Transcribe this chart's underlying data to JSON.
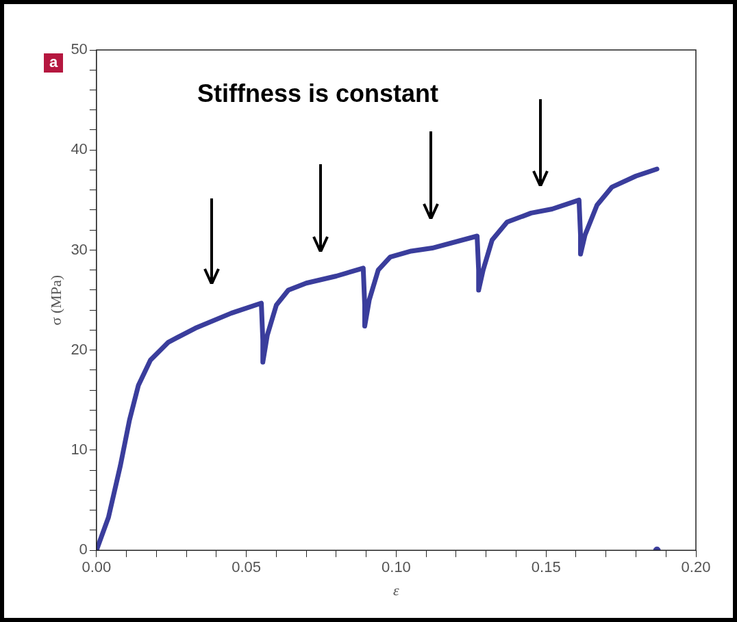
{
  "chart_data": {
    "type": "line",
    "xlabel": "ε",
    "ylabel": "σ (MPa)",
    "annotations": [
      "a",
      "Stiffness is constant"
    ],
    "xlim": [
      0,
      0.2
    ],
    "ylim": [
      0,
      50
    ],
    "xticks": [
      {
        "value": 0,
        "label": "0.00"
      },
      {
        "value": 0.01,
        "label": null
      },
      {
        "value": 0.02,
        "label": null
      },
      {
        "value": 0.03,
        "label": null
      },
      {
        "value": 0.04,
        "label": null
      },
      {
        "value": 0.05,
        "label": "0.05"
      },
      {
        "value": 0.06,
        "label": null
      },
      {
        "value": 0.07,
        "label": null
      },
      {
        "value": 0.08,
        "label": null
      },
      {
        "value": 0.09,
        "label": null
      },
      {
        "value": 0.1,
        "label": "0.10"
      },
      {
        "value": 0.11,
        "label": null
      },
      {
        "value": 0.12,
        "label": null
      },
      {
        "value": 0.13,
        "label": null
      },
      {
        "value": 0.14,
        "label": null
      },
      {
        "value": 0.15,
        "label": "0.15"
      },
      {
        "value": 0.16,
        "label": null
      },
      {
        "value": 0.17,
        "label": null
      },
      {
        "value": 0.18,
        "label": null
      },
      {
        "value": 0.19,
        "label": null
      },
      {
        "value": 0.2,
        "label": "0.20"
      }
    ],
    "yticks": [
      0,
      {
        "value": 2,
        "label": null
      },
      {
        "value": 4,
        "label": null
      },
      {
        "value": 6,
        "label": null
      },
      {
        "value": 8,
        "label": null
      },
      10,
      {
        "value": 12,
        "label": null
      },
      {
        "value": 14,
        "label": null
      },
      {
        "value": 16,
        "label": null
      },
      {
        "value": 18,
        "label": null
      },
      20,
      {
        "value": 22,
        "label": null
      },
      {
        "value": 24,
        "label": null
      },
      {
        "value": 26,
        "label": null
      },
      {
        "value": 28,
        "label": null
      },
      30,
      {
        "value": 32,
        "label": null
      },
      {
        "value": 34,
        "label": null
      },
      {
        "value": 36,
        "label": null
      },
      {
        "value": 38,
        "label": null
      },
      40,
      {
        "value": 42,
        "label": null
      },
      {
        "value": 44,
        "label": null
      },
      {
        "value": 46,
        "label": null
      },
      {
        "value": 48,
        "label": null
      },
      50
    ],
    "series": [
      {
        "color": "#3a3d9c",
        "x": [
          0,
          0.004,
          0.008,
          0.011,
          0.014,
          0.018,
          0.024,
          0.033,
          0.045,
          0.055,
          0.0555,
          0.0555,
          0.057,
          0.06,
          0.064,
          0.07,
          0.08,
          0.089,
          0.0895,
          0.0895,
          0.091,
          0.094,
          0.098,
          0.105,
          0.112,
          0.127,
          0.1275,
          0.1275,
          0.129,
          0.132,
          0.137,
          0.145,
          0.152,
          0.161,
          0.1615,
          0.1615,
          0.163,
          0.167,
          0.172,
          0.18,
          0.187
        ],
        "values": [
          0,
          3.3,
          8.5,
          13,
          16.5,
          19,
          20.8,
          22.2,
          23.7,
          24.7,
          21,
          18.8,
          21.5,
          24.5,
          26,
          26.7,
          27.4,
          28.2,
          24.5,
          22.4,
          25,
          28,
          29.3,
          29.9,
          30.2,
          31.4,
          28,
          26,
          28,
          31,
          32.8,
          33.7,
          34.1,
          35,
          31.5,
          29.6,
          31.5,
          34.5,
          36.3,
          37.4,
          38.1
        ]
      },
      {
        "type": "scatter",
        "color": "#3a3d9c",
        "x": [
          0.187
        ],
        "values": [
          0
        ]
      }
    ]
  }
}
